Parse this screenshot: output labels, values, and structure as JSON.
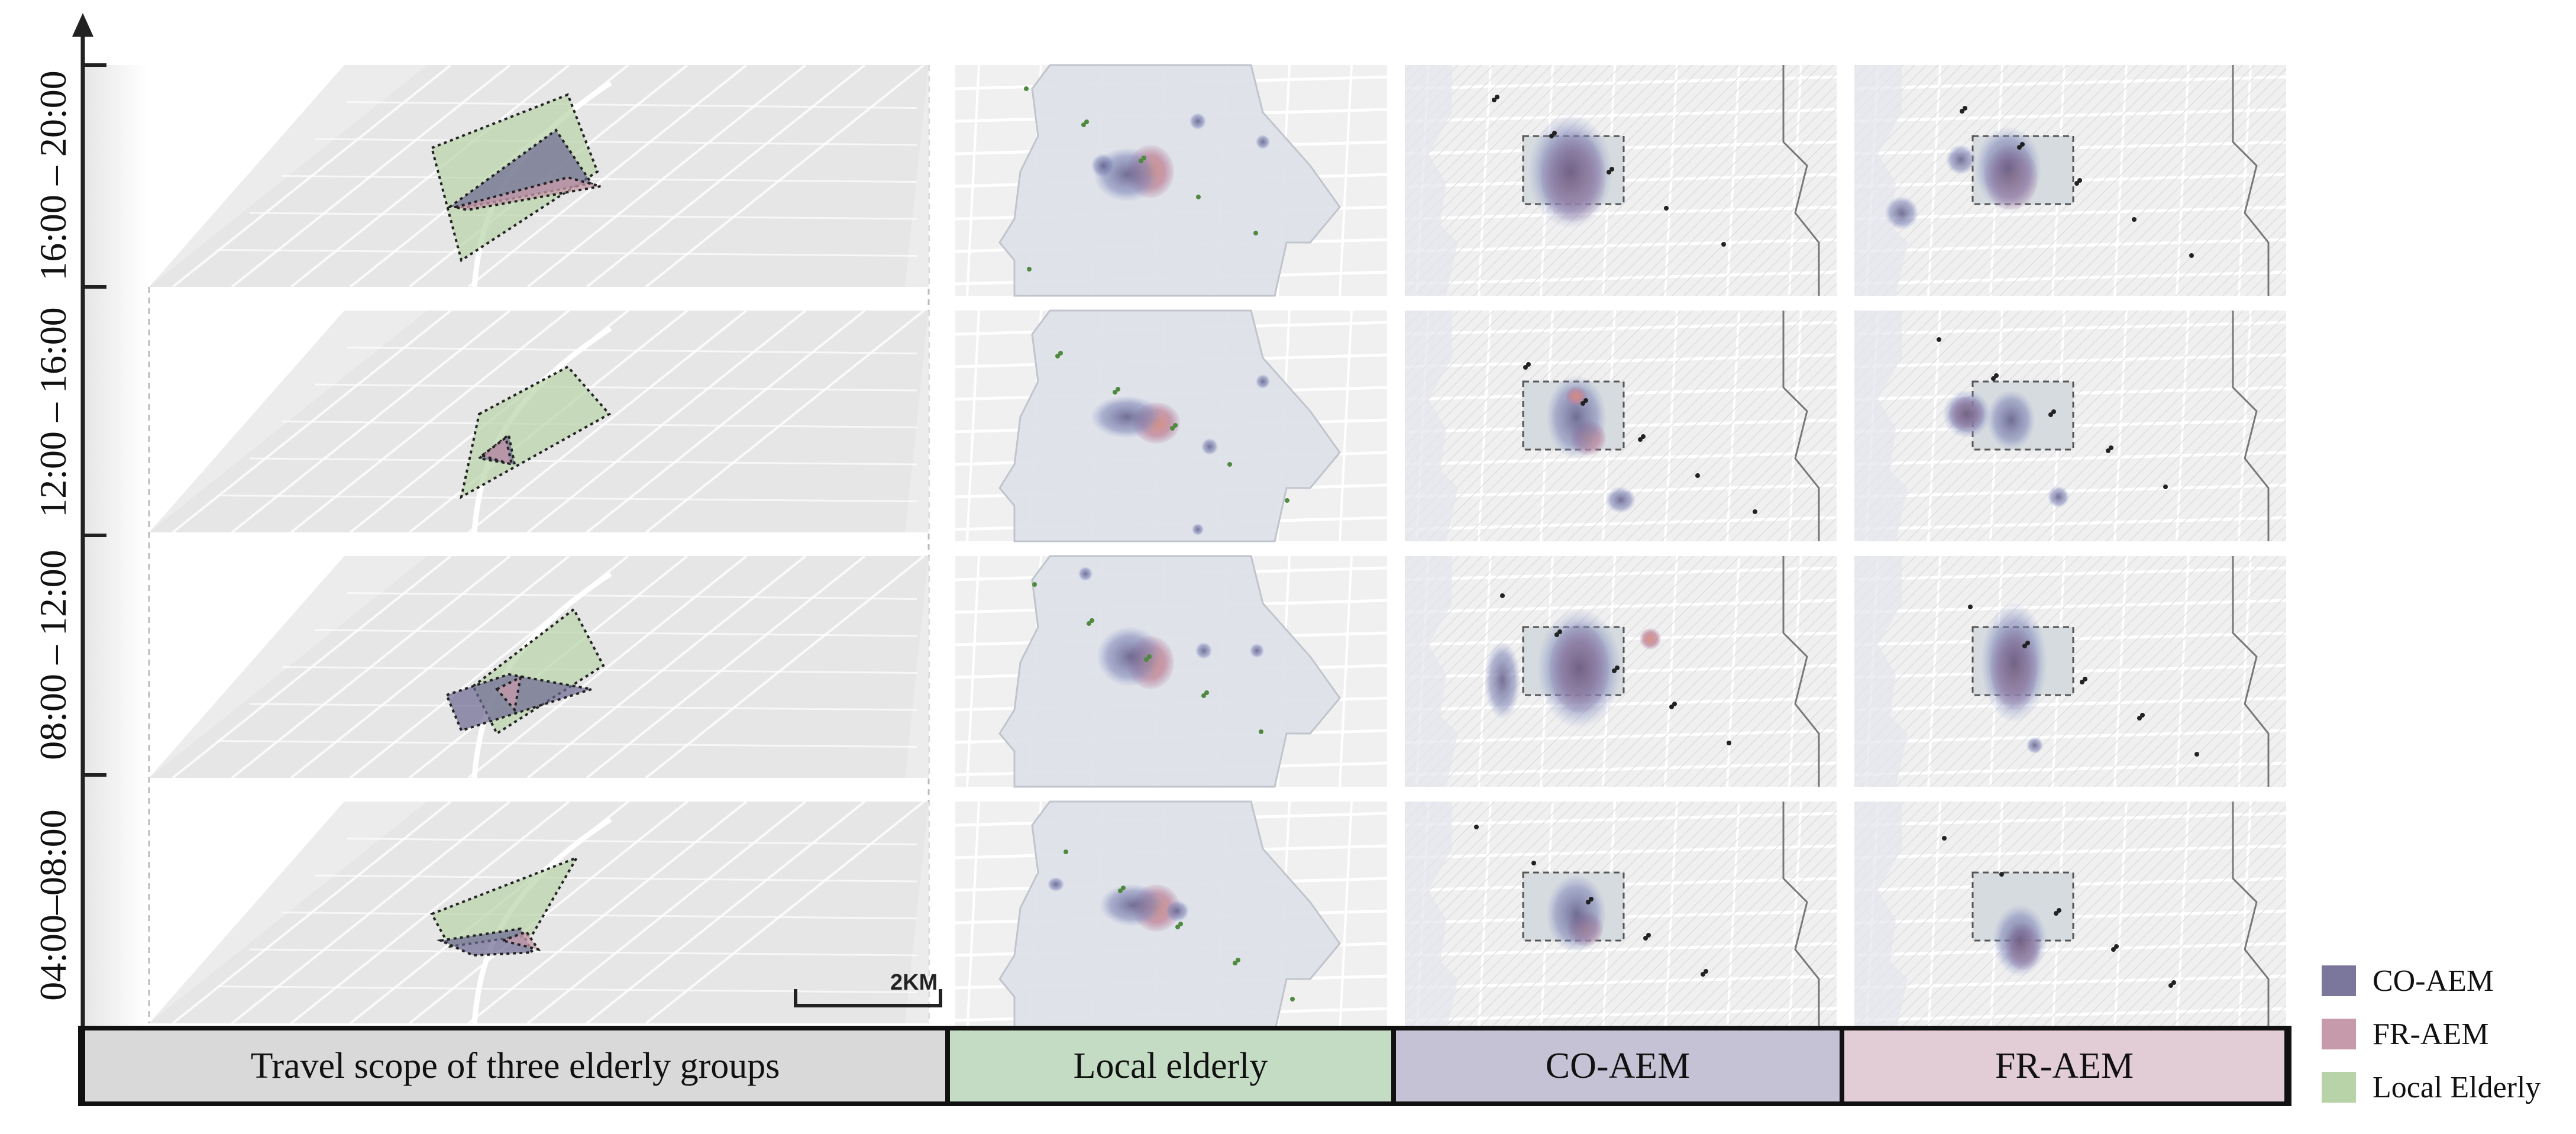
{
  "time_axis": {
    "labels": [
      "16:00 – 20:00",
      "12:00 – 16:00",
      "08:00 – 12:00",
      "04:00–08:00"
    ]
  },
  "columns": [
    {
      "label": "Travel scope of three elderly groups",
      "color": "#d9d9d9"
    },
    {
      "label": "Local elderly",
      "color": "#c5dcc4"
    },
    {
      "label": "CO-AEM",
      "color": "#c5c2d6"
    },
    {
      "label": "FR-AEM",
      "color": "#e2ccd6"
    }
  ],
  "legend": [
    {
      "label": "CO-AEM",
      "color": "#7b769c"
    },
    {
      "label": "FR-AEM",
      "color": "#c69aaa"
    },
    {
      "label": "Local Elderly",
      "color": "#b8d3a8"
    }
  ],
  "scale_bar": {
    "label": "2KM"
  },
  "colors": {
    "co_aem": "#5f5a86",
    "fr_aem": "#c0879a",
    "local": "#a9c99a",
    "map_bg": "#eeeeee",
    "area_bg": "#e1e3ea"
  }
}
